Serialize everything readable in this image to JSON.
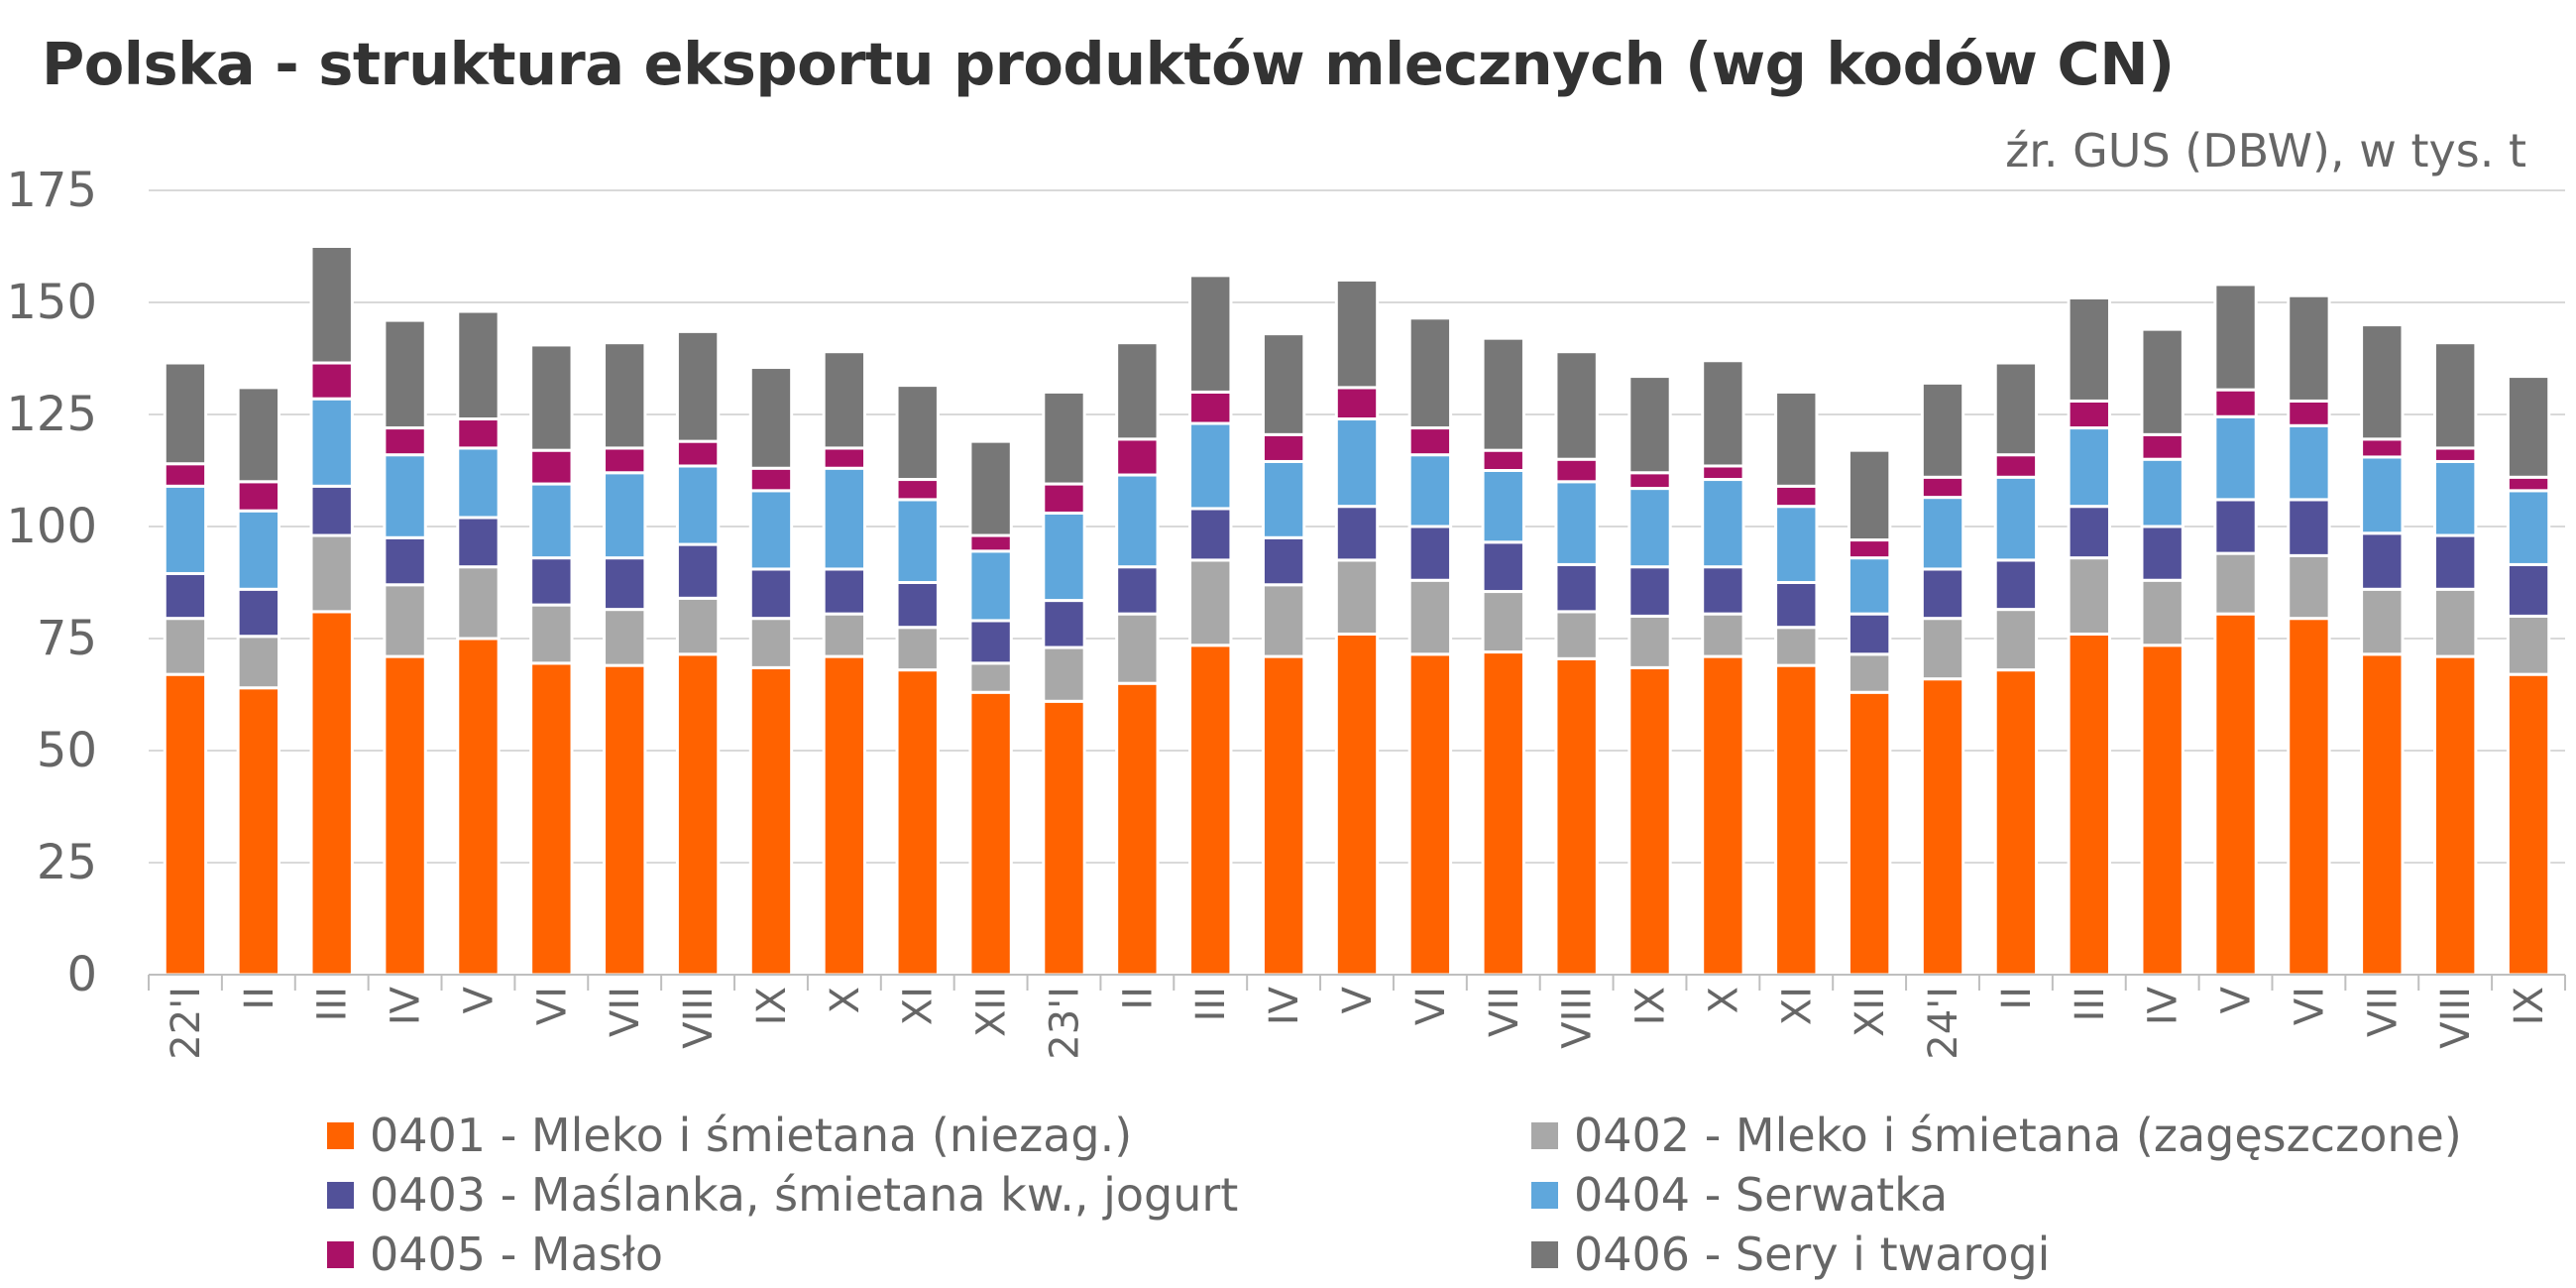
{
  "chart_data": {
    "type": "bar",
    "stacked": true,
    "title": "Polska - struktura eksportu produktów mlecznych (wg kodów CN)",
    "source_note": "źr. GUS (DBW), w tys. t",
    "ylim": [
      0,
      175
    ],
    "yticks": [
      "0",
      "25",
      "50",
      "75",
      "100",
      "125",
      "150",
      "175"
    ],
    "grid": true,
    "legend_position": "bottom",
    "categories": [
      "22'I",
      "II",
      "III",
      "IV",
      "V",
      "VI",
      "VII",
      "VIII",
      "IX",
      "X",
      "XI",
      "XII",
      "23'I",
      "II",
      "III",
      "IV",
      "V",
      "VI",
      "VII",
      "VIII",
      "IX",
      "X",
      "XI",
      "XII",
      "24'I",
      "II",
      "III",
      "IV",
      "V",
      "VI",
      "VII",
      "VIII",
      "IX"
    ],
    "series": [
      {
        "name": "0401 - Mleko i śmietana (niezag.)",
        "color": "#FF6200",
        "values": [
          67,
          64,
          81,
          71,
          75,
          69.5,
          69,
          71.5,
          68.5,
          71,
          68,
          63,
          61,
          65,
          73.5,
          71,
          76,
          71.5,
          72,
          70.5,
          68.5,
          71,
          69,
          63,
          66,
          68,
          76,
          73.5,
          80.5,
          79.5,
          71.5,
          71,
          67
        ]
      },
      {
        "name": "0402 - Mleko i śmietana (zagęszczone)",
        "color": "#A8A8A8",
        "values": [
          12.5,
          11.5,
          17,
          16,
          16,
          13,
          12.5,
          12.5,
          11,
          9.5,
          9.5,
          6.5,
          12,
          15.5,
          19,
          16,
          16.5,
          16.5,
          13.5,
          10.5,
          11.5,
          9.5,
          8.5,
          8.5,
          13.5,
          13.5,
          17,
          14.5,
          13.5,
          14,
          14.5,
          15,
          13
        ]
      },
      {
        "name": "0403 - Maślanka, śmietana kw., jogurt",
        "color": "#525199",
        "values": [
          10,
          10.5,
          11,
          10.5,
          11,
          10.5,
          11.5,
          12,
          11,
          10,
          10,
          9.5,
          10.5,
          10.5,
          11.5,
          10.5,
          12,
          12,
          11,
          10.5,
          11,
          10.5,
          10,
          9,
          11,
          11,
          11.5,
          12,
          12,
          12.5,
          12.5,
          12,
          11.5
        ]
      },
      {
        "name": "0404 - Serwatka",
        "color": "#5FA7DC",
        "values": [
          19.5,
          17.5,
          19.5,
          18.5,
          15.5,
          16.5,
          19,
          17.5,
          17.5,
          22.5,
          18.5,
          15.5,
          19.5,
          20.5,
          19,
          17,
          19.5,
          16,
          16,
          18.5,
          17.5,
          19.5,
          17,
          12.5,
          16,
          18.5,
          17.5,
          15,
          18.5,
          16.5,
          17,
          16.5,
          16.5
        ]
      },
      {
        "name": "0405 - Masło",
        "color": "#AA1166",
        "values": [
          5,
          6.5,
          8,
          6,
          6.5,
          7.5,
          5.5,
          5.5,
          5,
          4.5,
          4.5,
          3.5,
          6.5,
          8,
          7,
          6,
          7,
          6,
          4.5,
          5,
          3.5,
          3,
          4.5,
          4,
          4.5,
          5,
          6,
          5.5,
          6,
          5.5,
          4,
          3,
          3
        ]
      },
      {
        "name": "0406 - Sery i twarogi",
        "color": "#777777",
        "values": [
          22.5,
          21,
          26,
          24,
          24,
          23.5,
          23.5,
          24.5,
          22.5,
          21.5,
          21,
          21,
          20.5,
          21.5,
          26,
          22.5,
          24,
          24.5,
          25,
          24,
          21.5,
          23.5,
          21,
          20,
          21,
          20.5,
          23,
          23.5,
          23.5,
          23.5,
          25.5,
          23.5,
          22.5
        ]
      }
    ]
  }
}
